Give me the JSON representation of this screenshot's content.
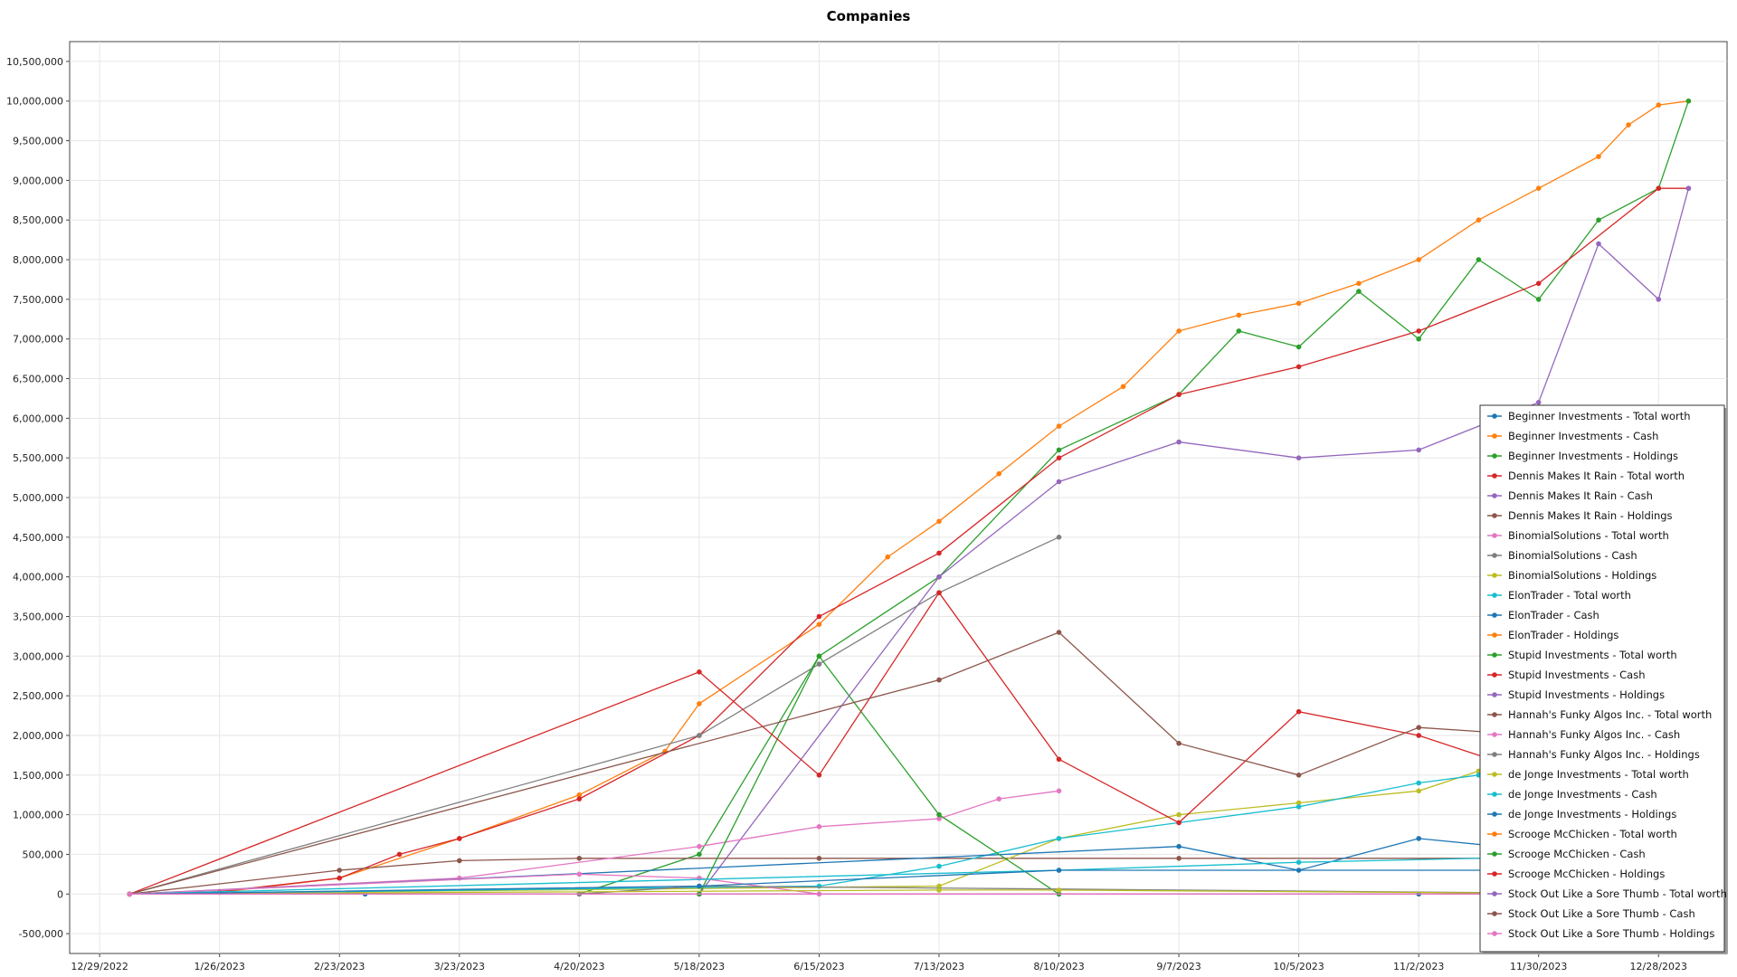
{
  "chart_data": {
    "type": "line",
    "title": "Companies",
    "xlabel": "",
    "ylabel": "",
    "ylim": [
      -750000,
      10750000
    ],
    "grid": true,
    "legend_placement": "bottom-right",
    "x_ticks": [
      "12/29/2022",
      "1/26/2023",
      "2/23/2023",
      "3/23/2023",
      "4/20/2023",
      "5/18/2023",
      "6/15/2023",
      "7/13/2023",
      "8/10/2023",
      "9/7/2023",
      "10/5/2023",
      "11/2/2023",
      "11/30/2023",
      "12/28/2023"
    ],
    "y_ticks": [
      -500000,
      0,
      500000,
      1000000,
      1500000,
      2000000,
      2500000,
      3000000,
      3500000,
      4000000,
      4500000,
      5000000,
      5500000,
      6000000,
      6500000,
      7000000,
      7500000,
      8000000,
      8500000,
      9000000,
      9500000,
      10000000,
      10500000
    ],
    "y_tick_labels": [
      "-500,000",
      "0",
      "500,000",
      "1,000,000",
      "1,500,000",
      "2,000,000",
      "2,500,000",
      "3,000,000",
      "3,500,000",
      "4,000,000",
      "4,500,000",
      "5,000,000",
      "5,500,000",
      "6,000,000",
      "6,500,000",
      "7,000,000",
      "7,500,000",
      "8,000,000",
      "8,500,000",
      "9,000,000",
      "9,500,000",
      "10,000,000",
      "10,500,000"
    ],
    "x_range": [
      "12/22/2022",
      "1/13/2024"
    ],
    "series": [
      {
        "name": "Beginner Investments - Total worth",
        "color": "#1f77b4",
        "values": [
          [
            "1/5/2023",
            0
          ],
          [
            "3/1/2023",
            0
          ],
          [
            "5/18/2023",
            0
          ],
          [
            "8/10/2023",
            0
          ],
          [
            "11/2/2023",
            0
          ],
          [
            "12/28/2023",
            0
          ]
        ]
      },
      {
        "name": "Beginner Investments - Cash",
        "color": "#ff7f0e",
        "values": [
          [
            "1/5/2023",
            0
          ],
          [
            "1/26/2023",
            20000
          ],
          [
            "2/23/2023",
            200000
          ],
          [
            "3/23/2023",
            700000
          ],
          [
            "4/20/2023",
            1250000
          ],
          [
            "5/10/2023",
            1800000
          ],
          [
            "5/18/2023",
            2400000
          ],
          [
            "6/15/2023",
            3400000
          ],
          [
            "7/1/2023",
            4250000
          ],
          [
            "7/13/2023",
            4700000
          ],
          [
            "7/27/2023",
            5300000
          ],
          [
            "8/10/2023",
            5900000
          ],
          [
            "8/25/2023",
            6400000
          ],
          [
            "9/7/2023",
            7100000
          ],
          [
            "9/21/2023",
            7300000
          ],
          [
            "10/5/2023",
            7450000
          ],
          [
            "10/19/2023",
            7700000
          ],
          [
            "11/2/2023",
            8000000
          ],
          [
            "11/16/2023",
            8500000
          ],
          [
            "11/30/2023",
            8900000
          ],
          [
            "12/14/2023",
            9300000
          ],
          [
            "12/21/2023",
            9700000
          ],
          [
            "12/28/2023",
            9950000
          ],
          [
            "1/4/2024",
            10000000
          ]
        ]
      },
      {
        "name": "Beginner Investments - Holdings",
        "color": "#2ca02c",
        "values": [
          [
            "1/5/2023",
            0
          ],
          [
            "4/20/2023",
            0
          ],
          [
            "5/18/2023",
            500000
          ],
          [
            "6/15/2023",
            3000000
          ],
          [
            "7/13/2023",
            4000000
          ],
          [
            "8/10/2023",
            5600000
          ],
          [
            "9/7/2023",
            6300000
          ],
          [
            "9/21/2023",
            7100000
          ],
          [
            "10/5/2023",
            6900000
          ],
          [
            "10/19/2023",
            7600000
          ],
          [
            "11/2/2023",
            7000000
          ],
          [
            "11/16/2023",
            8000000
          ],
          [
            "11/30/2023",
            7500000
          ],
          [
            "12/14/2023",
            8500000
          ],
          [
            "12/28/2023",
            8900000
          ],
          [
            "1/4/2024",
            10000000
          ]
        ]
      },
      {
        "name": "Dennis Makes It Rain - Total worth",
        "color": "#d62728",
        "values": [
          [
            "1/5/2023",
            0
          ],
          [
            "1/26/2023",
            30000
          ],
          [
            "2/23/2023",
            200000
          ],
          [
            "3/9/2023",
            500000
          ],
          [
            "3/23/2023",
            700000
          ],
          [
            "4/20/2023",
            1200000
          ],
          [
            "5/18/2023",
            2000000
          ],
          [
            "6/15/2023",
            3500000
          ],
          [
            "7/13/2023",
            4300000
          ],
          [
            "8/10/2023",
            5500000
          ],
          [
            "9/7/2023",
            6300000
          ],
          [
            "10/5/2023",
            6650000
          ],
          [
            "11/2/2023",
            7100000
          ],
          [
            "11/30/2023",
            7700000
          ],
          [
            "12/28/2023",
            8900000
          ],
          [
            "1/4/2024",
            8900000
          ]
        ]
      },
      {
        "name": "Dennis Makes It Rain - Cash",
        "color": "#9467bd",
        "values": [
          [
            "1/5/2023",
            0
          ],
          [
            "5/18/2023",
            0
          ],
          [
            "7/13/2023",
            4000000
          ],
          [
            "8/10/2023",
            5200000
          ],
          [
            "9/7/2023",
            5700000
          ],
          [
            "10/5/2023",
            5500000
          ],
          [
            "11/2/2023",
            5600000
          ],
          [
            "11/30/2023",
            6200000
          ],
          [
            "12/14/2023",
            8200000
          ],
          [
            "12/28/2023",
            7500000
          ],
          [
            "1/4/2024",
            8900000
          ]
        ]
      },
      {
        "name": "Dennis Makes It Rain - Holdings",
        "color": "#8c564b",
        "values": [
          [
            "1/5/2023",
            0
          ],
          [
            "2/23/2023",
            300000
          ],
          [
            "3/23/2023",
            420000
          ],
          [
            "4/20/2023",
            450000
          ],
          [
            "6/15/2023",
            450000
          ],
          [
            "9/7/2023",
            450000
          ],
          [
            "12/28/2023",
            450000
          ]
        ]
      },
      {
        "name": "BinomialSolutions - Total worth",
        "color": "#e377c2",
        "values": [
          [
            "1/5/2023",
            0
          ],
          [
            "3/23/2023",
            200000
          ],
          [
            "5/18/2023",
            600000
          ],
          [
            "6/15/2023",
            850000
          ],
          [
            "7/13/2023",
            950000
          ],
          [
            "7/27/2023",
            1200000
          ],
          [
            "8/10/2023",
            1300000
          ]
        ]
      },
      {
        "name": "BinomialSolutions - Cash",
        "color": "#7f7f7f",
        "values": [
          [
            "1/5/2023",
            0
          ],
          [
            "5/18/2023",
            2000000
          ],
          [
            "6/15/2023",
            2900000
          ],
          [
            "7/13/2023",
            3800000
          ],
          [
            "8/10/2023",
            4500000
          ]
        ]
      },
      {
        "name": "BinomialSolutions - Holdings",
        "color": "#bcbd22",
        "values": [
          [
            "1/5/2023",
            0
          ],
          [
            "7/13/2023",
            100000
          ],
          [
            "8/10/2023",
            700000
          ],
          [
            "9/7/2023",
            1000000
          ],
          [
            "10/5/2023",
            1150000
          ],
          [
            "11/2/2023",
            1300000
          ],
          [
            "11/16/2023",
            1550000
          ],
          [
            "11/30/2023",
            1700000
          ]
        ]
      },
      {
        "name": "ElonTrader - Total worth",
        "color": "#17becf",
        "values": [
          [
            "1/5/2023",
            0
          ],
          [
            "6/15/2023",
            100000
          ],
          [
            "7/13/2023",
            350000
          ],
          [
            "8/10/2023",
            700000
          ],
          [
            "9/7/2023",
            900000
          ],
          [
            "10/5/2023",
            1100000
          ],
          [
            "11/2/2023",
            1400000
          ],
          [
            "11/16/2023",
            1500000
          ]
        ]
      },
      {
        "name": "ElonTrader - Cash",
        "color": "#1f77b4",
        "values": [
          [
            "1/5/2023",
            0
          ],
          [
            "9/7/2023",
            600000
          ],
          [
            "10/5/2023",
            300000
          ],
          [
            "11/2/2023",
            700000
          ],
          [
            "12/28/2023",
            400000
          ]
        ]
      },
      {
        "name": "ElonTrader - Holdings",
        "color": "#ff7f0e",
        "values": [
          [
            "1/5/2023",
            0
          ],
          [
            "12/28/2023",
            0
          ]
        ]
      },
      {
        "name": "Stupid Investments - Total worth",
        "color": "#2ca02c",
        "values": [
          [
            "1/5/2023",
            0
          ],
          [
            "5/18/2023",
            0
          ],
          [
            "6/15/2023",
            3000000
          ],
          [
            "7/13/2023",
            1000000
          ],
          [
            "8/10/2023",
            0
          ],
          [
            "12/28/2023",
            0
          ]
        ]
      },
      {
        "name": "Stupid Investments - Cash",
        "color": "#d62728",
        "values": [
          [
            "1/5/2023",
            0
          ],
          [
            "5/18/2023",
            2800000
          ],
          [
            "6/15/2023",
            1500000
          ],
          [
            "7/13/2023",
            3800000
          ],
          [
            "8/10/2023",
            1700000
          ],
          [
            "9/7/2023",
            900000
          ],
          [
            "10/5/2023",
            2300000
          ],
          [
            "11/2/2023",
            2000000
          ],
          [
            "11/30/2023",
            1500000
          ]
        ]
      },
      {
        "name": "Stupid Investments - Holdings",
        "color": "#9467bd",
        "values": [
          [
            "1/5/2023",
            0
          ],
          [
            "12/28/2023",
            0
          ]
        ]
      },
      {
        "name": "Hannah's Funky Algos Inc. - Total worth",
        "color": "#8c564b",
        "values": [
          [
            "1/5/2023",
            0
          ],
          [
            "7/13/2023",
            2700000
          ],
          [
            "8/10/2023",
            3300000
          ],
          [
            "9/7/2023",
            1900000
          ],
          [
            "10/5/2023",
            1500000
          ],
          [
            "11/2/2023",
            2100000
          ],
          [
            "11/30/2023",
            2000000
          ]
        ]
      },
      {
        "name": "Hannah's Funky Algos Inc. - Cash",
        "color": "#e377c2",
        "values": [
          [
            "1/5/2023",
            0
          ],
          [
            "4/20/2023",
            250000
          ],
          [
            "5/18/2023",
            200000
          ],
          [
            "6/15/2023",
            0
          ],
          [
            "12/28/2023",
            0
          ]
        ]
      },
      {
        "name": "Hannah's Funky Algos Inc. - Holdings",
        "color": "#7f7f7f",
        "values": [
          [
            "1/5/2023",
            0
          ],
          [
            "4/20/2023",
            0
          ],
          [
            "5/18/2023",
            100000
          ],
          [
            "12/28/2023",
            0
          ]
        ]
      },
      {
        "name": "de Jonge Investments - Total worth",
        "color": "#bcbd22",
        "values": [
          [
            "1/5/2023",
            0
          ],
          [
            "7/13/2023",
            50000
          ],
          [
            "8/10/2023",
            50000
          ],
          [
            "12/28/2023",
            0
          ]
        ]
      },
      {
        "name": "de Jonge Investments - Cash",
        "color": "#17becf",
        "values": [
          [
            "1/5/2023",
            0
          ],
          [
            "8/10/2023",
            300000
          ],
          [
            "10/5/2023",
            400000
          ],
          [
            "12/28/2023",
            500000
          ]
        ]
      },
      {
        "name": "de Jonge Investments - Holdings",
        "color": "#1f77b4",
        "values": [
          [
            "1/5/2023",
            0
          ],
          [
            "5/18/2023",
            100000
          ],
          [
            "8/10/2023",
            300000
          ],
          [
            "12/28/2023",
            300000
          ]
        ]
      },
      {
        "name": "Scrooge McChicken - Total worth",
        "color": "#ff7f0e",
        "values": [
          [
            "1/5/2023",
            0
          ],
          [
            "12/28/2023",
            0
          ]
        ]
      },
      {
        "name": "Scrooge McChicken - Cash",
        "color": "#2ca02c",
        "values": [
          [
            "1/5/2023",
            0
          ],
          [
            "12/28/2023",
            0
          ]
        ]
      },
      {
        "name": "Scrooge McChicken - Holdings",
        "color": "#d62728",
        "values": [
          [
            "1/5/2023",
            0
          ],
          [
            "12/28/2023",
            0
          ]
        ]
      },
      {
        "name": "Stock Out Like a Sore Thumb - Total worth",
        "color": "#9467bd",
        "values": [
          [
            "1/5/2023",
            0
          ],
          [
            "12/28/2023",
            0
          ]
        ]
      },
      {
        "name": "Stock Out Like a Sore Thumb - Cash",
        "color": "#8c564b",
        "values": [
          [
            "1/5/2023",
            0
          ],
          [
            "12/28/2023",
            0
          ]
        ]
      },
      {
        "name": "Stock Out Like a Sore Thumb - Holdings",
        "color": "#e377c2",
        "values": [
          [
            "1/5/2023",
            0
          ],
          [
            "12/28/2023",
            0
          ]
        ]
      }
    ]
  }
}
